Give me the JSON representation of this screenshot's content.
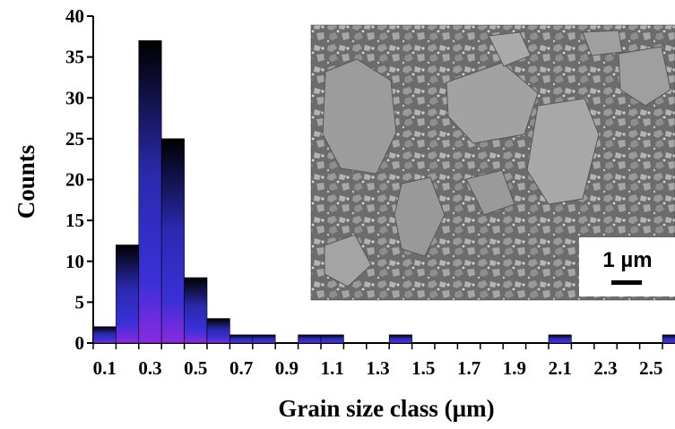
{
  "chart_data": {
    "type": "bar",
    "xlabel": "Grain size class (µm)",
    "ylabel": "Counts",
    "ylim": [
      0,
      40
    ],
    "yticks": [
      0,
      5,
      10,
      15,
      20,
      25,
      30,
      35,
      40
    ],
    "categories": [
      "0.1",
      "0.2",
      "0.3",
      "0.4",
      "0.5",
      "0.6",
      "0.7",
      "0.8",
      "0.9",
      "1.0",
      "1.1",
      "1.2",
      "1.3",
      "1.4",
      "1.5",
      "1.6",
      "1.7",
      "1.8",
      "1.9",
      "2.0",
      "2.1",
      "2.2",
      "2.3",
      "2.4",
      "2.5",
      "2.6"
    ],
    "x_tick_labels": [
      "0.1",
      "0.3",
      "0.5",
      "0.7",
      "0.9",
      "1.1",
      "1.3",
      "1.5",
      "1.7",
      "1.9",
      "2.1",
      "2.3",
      "2.5"
    ],
    "values": [
      2,
      12,
      37,
      25,
      8,
      3,
      1,
      1,
      0,
      1,
      1,
      0,
      0,
      1,
      0,
      0,
      0,
      0,
      0,
      0,
      1,
      0,
      0,
      0,
      0,
      1
    ],
    "bar_gradient": [
      "#000000",
      "#2d2db4",
      "#3a2fd9",
      "#8a2be0"
    ],
    "grid": false
  },
  "inset": {
    "scale_bar_label": "1 µm"
  }
}
